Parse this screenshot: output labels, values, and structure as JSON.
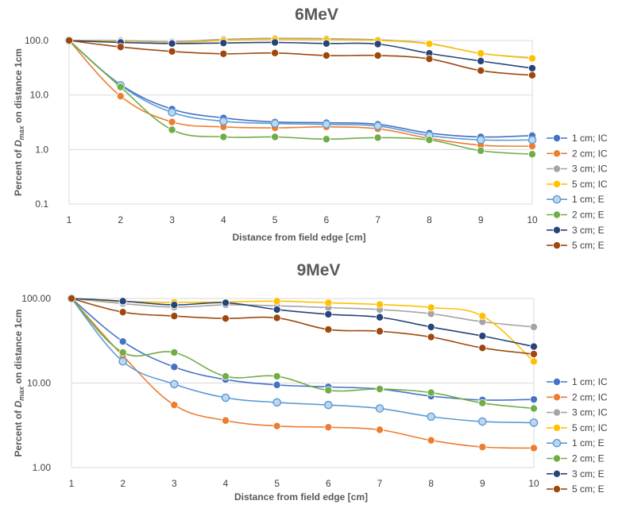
{
  "chart_data": [
    {
      "type": "line",
      "title": "6MeV",
      "xlabel": "Distance from field edge [cm]",
      "ylabel_prefix": "Percent of ",
      "ylabel_symbol": "D",
      "ylabel_sub": "max",
      "ylabel_suffix": " on distance 1cm",
      "yscale": "log",
      "ylim": [
        0.1,
        100
      ],
      "yticks": [
        0.1,
        1,
        10,
        100
      ],
      "ytick_labels": [
        "0.1",
        "1.0",
        "10.0",
        "100.0"
      ],
      "x": [
        1,
        2,
        3,
        4,
        5,
        6,
        7,
        8,
        9,
        10
      ],
      "xtick_labels": [
        "1",
        "2",
        "3",
        "4",
        "5",
        "6",
        "7",
        "8",
        "9",
        "10"
      ],
      "grid": "horizontal",
      "legend": "right",
      "series": [
        {
          "name": "1 cm; IC",
          "color": "#4472C4",
          "values": [
            100,
            15.5,
            5.5,
            3.8,
            3.2,
            3.1,
            2.9,
            2.0,
            1.7,
            1.8
          ]
        },
        {
          "name": "2 cm; IC",
          "color": "#ED7D31",
          "values": [
            100,
            9.5,
            3.2,
            2.6,
            2.5,
            2.6,
            2.4,
            1.6,
            1.2,
            1.15
          ]
        },
        {
          "name": "3 cm; IC",
          "color": "#A5A5A5",
          "values": [
            100,
            100,
            95,
            105,
            110,
            108,
            103,
            88,
            58,
            48
          ]
        },
        {
          "name": "5 cm; IC",
          "color": "#FFC000",
          "values": [
            100,
            95,
            90,
            100,
            105,
            103,
            100,
            87,
            58,
            47
          ]
        },
        {
          "name": "1 cm; E",
          "color": "#5B9BD5",
          "hollow": true,
          "values": [
            100,
            15,
            4.8,
            3.3,
            3.0,
            2.9,
            2.7,
            1.8,
            1.5,
            1.5
          ]
        },
        {
          "name": "2 cm; E",
          "color": "#70AD47",
          "values": [
            100,
            14,
            2.3,
            1.7,
            1.7,
            1.55,
            1.65,
            1.5,
            0.95,
            0.82
          ]
        },
        {
          "name": "3 cm; E",
          "color": "#264478",
          "values": [
            100,
            92,
            88,
            90,
            92,
            88,
            86,
            58,
            42,
            31
          ]
        },
        {
          "name": "5 cm; E",
          "color": "#9E480E",
          "values": [
            100,
            76,
            63,
            57,
            59,
            53,
            53,
            46,
            28,
            23
          ]
        }
      ]
    },
    {
      "type": "line",
      "title": "9MeV",
      "xlabel": "Distance from field edge [cm]",
      "ylabel_prefix": "Percent of ",
      "ylabel_symbol": "D",
      "ylabel_sub": "max",
      "ylabel_suffix": " on distance 1cm",
      "yscale": "log",
      "ylim": [
        1,
        100
      ],
      "yticks": [
        1,
        10,
        100
      ],
      "ytick_labels": [
        "1.00",
        "10.00",
        "100.00"
      ],
      "x": [
        1,
        2,
        3,
        4,
        5,
        6,
        7,
        8,
        9,
        10
      ],
      "xtick_labels": [
        "1",
        "2",
        "3",
        "4",
        "5",
        "6",
        "7",
        "8",
        "9",
        "10"
      ],
      "grid": "horizontal",
      "legend": "right",
      "series": [
        {
          "name": "1 cm; IC",
          "color": "#4472C4",
          "values": [
            100,
            31,
            15.5,
            11,
            9.5,
            9.0,
            8.5,
            7.0,
            6.3,
            6.4
          ]
        },
        {
          "name": "2 cm; IC",
          "color": "#ED7D31",
          "values": [
            100,
            21,
            5.5,
            3.6,
            3.1,
            3.0,
            2.8,
            2.1,
            1.75,
            1.7
          ]
        },
        {
          "name": "3 cm; IC",
          "color": "#A5A5A5",
          "values": [
            100,
            87,
            79,
            84,
            82,
            78,
            74,
            66,
            53,
            46
          ]
        },
        {
          "name": "5 cm; IC",
          "color": "#FFC000",
          "values": [
            100,
            92,
            90,
            91,
            93,
            89,
            85,
            78,
            62,
            18
          ]
        },
        {
          "name": "1 cm; E",
          "color": "#5B9BD5",
          "hollow": true,
          "values": [
            100,
            18,
            9.7,
            6.7,
            5.9,
            5.5,
            5.0,
            4.0,
            3.5,
            3.4
          ]
        },
        {
          "name": "2 cm; E",
          "color": "#70AD47",
          "values": [
            100,
            23,
            23,
            12,
            12,
            8.2,
            8.5,
            7.7,
            5.8,
            5.0
          ]
        },
        {
          "name": "3 cm; E",
          "color": "#264478",
          "values": [
            100,
            93,
            84,
            89,
            74,
            65,
            60,
            46,
            36,
            27
          ]
        },
        {
          "name": "5 cm; E",
          "color": "#9E480E",
          "values": [
            100,
            69,
            62,
            58,
            59,
            43,
            41,
            35,
            26,
            22
          ]
        }
      ]
    }
  ]
}
